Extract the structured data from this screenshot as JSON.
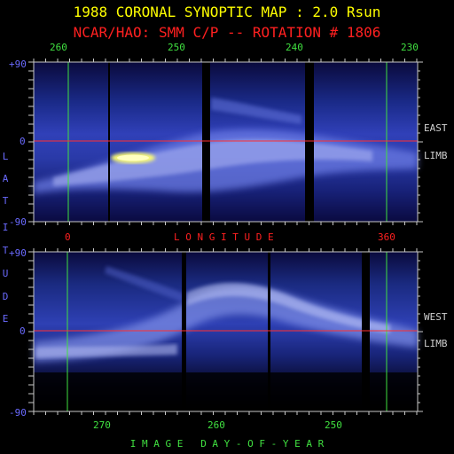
{
  "header": {
    "title": "1988 CORONAL SYNOPTIC MAP : 2.0 Rsun",
    "subtitle": "NCAR/HAO: SMM C/P -- ROTATION # 1806"
  },
  "top_axis": {
    "ticks": [
      "260",
      "250",
      "240",
      "230"
    ]
  },
  "bottom_axis": {
    "ticks": [
      "270",
      "260",
      "250"
    ]
  },
  "longitude": {
    "label": "L O N G I T U D E",
    "start": "0",
    "end": "360"
  },
  "latitude": {
    "letters": [
      "L",
      "A",
      "T",
      "I",
      "T",
      "U",
      "D",
      "E"
    ],
    "top_panel": {
      "max": "+90",
      "mid": "0",
      "min": "-90"
    },
    "bottom_panel": {
      "max": "+90",
      "mid": "0",
      "min": "-90"
    }
  },
  "limbs": {
    "east": {
      "line1": "EAST",
      "line2": "LIMB"
    },
    "west": {
      "line1": "WEST",
      "line2": "LIMB"
    }
  },
  "footer": {
    "label": "I M A G E   D A Y - O F - Y E A R"
  },
  "colors": {
    "title": "#ffff00",
    "subtitle": "#ff2020",
    "axis": "#40e040",
    "latitude": "#6a6aff",
    "equator": "#ff3030",
    "frame": "#c8c8c8"
  }
}
